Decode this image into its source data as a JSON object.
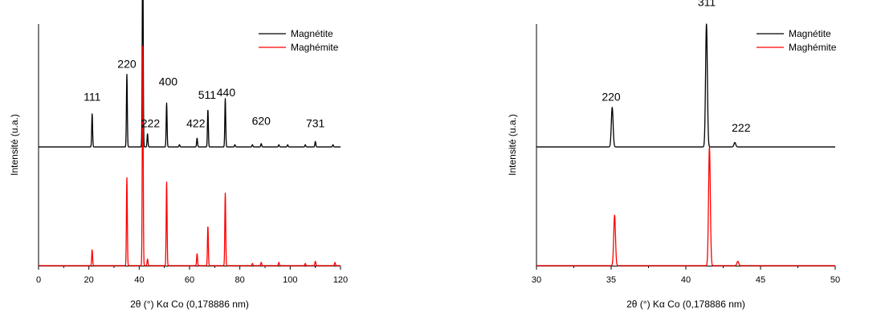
{
  "chart_data": [
    {
      "type": "line",
      "title": "",
      "xlabel": "2θ (°) Kα Co (0,178886 nm)",
      "ylabel": "Intensité (u.a.)",
      "xlim": [
        0,
        120
      ],
      "x_ticks": [
        0,
        20,
        40,
        60,
        80,
        100,
        120
      ],
      "y_ticks": [],
      "legend_position": "top-right",
      "series": [
        {
          "name": "Magnétite",
          "color": "#000000",
          "offset": 0.54,
          "peaks": [
            [
              21.3,
              0.15
            ],
            [
              35.1,
              0.33
            ],
            [
              41.4,
              1.0
            ],
            [
              43.3,
              0.06
            ],
            [
              50.9,
              0.2
            ],
            [
              56.0,
              0.01
            ],
            [
              63.0,
              0.04
            ],
            [
              67.3,
              0.17
            ],
            [
              74.2,
              0.22
            ],
            [
              78.0,
              0.01
            ],
            [
              85.0,
              0.01
            ],
            [
              88.5,
              0.015
            ],
            [
              95.5,
              0.01
            ],
            [
              99.0,
              0.01
            ],
            [
              106.0,
              0.01
            ],
            [
              110.0,
              0.025
            ],
            [
              117.0,
              0.01
            ]
          ]
        },
        {
          "name": "Maghémite",
          "color": "#ff0000",
          "offset": 0.0,
          "peaks": [
            [
              21.3,
              0.072
            ],
            [
              35.1,
              0.4
            ],
            [
              41.4,
              1.0
            ],
            [
              43.3,
              0.03
            ],
            [
              50.9,
              0.38
            ],
            [
              63.0,
              0.055
            ],
            [
              67.3,
              0.18
            ],
            [
              74.2,
              0.33
            ],
            [
              85.0,
              0.01
            ],
            [
              88.5,
              0.015
            ],
            [
              95.5,
              0.015
            ],
            [
              106.0,
              0.01
            ],
            [
              110.0,
              0.02
            ],
            [
              117.8,
              0.015
            ]
          ]
        }
      ],
      "annotations": [
        {
          "text": "111",
          "x": 21.3,
          "y": 0.75
        },
        {
          "text": "220",
          "x": 35.1,
          "y": 0.9
        },
        {
          "text": "311",
          "x": 41.4,
          "y": 1.6
        },
        {
          "text": "222",
          "x": 44.5,
          "y": 0.63
        },
        {
          "text": "400",
          "x": 51.5,
          "y": 0.82
        },
        {
          "text": "422",
          "x": 62.5,
          "y": 0.63
        },
        {
          "text": "511",
          "x": 67.0,
          "y": 0.76
        },
        {
          "text": "440",
          "x": 74.5,
          "y": 0.77
        },
        {
          "text": "620",
          "x": 88.5,
          "y": 0.64
        },
        {
          "text": "731",
          "x": 110.0,
          "y": 0.63
        }
      ]
    },
    {
      "type": "line",
      "title": "",
      "xlabel": "2θ (°) Kα Co (0,178886 nm)",
      "ylabel": "Intensité (u.a.)",
      "xlim": [
        30,
        50
      ],
      "x_ticks": [
        30,
        35,
        40,
        45,
        50
      ],
      "y_ticks": [],
      "legend_position": "top-right",
      "series": [
        {
          "name": "Magnétite",
          "color": "#000000",
          "offset": 0.54,
          "peaks": [
            [
              35.07,
              0.18
            ],
            [
              41.38,
              0.56
            ],
            [
              43.28,
              0.02
            ]
          ]
        },
        {
          "name": "Maghémite",
          "color": "#ff0000",
          "offset": 0.0,
          "peaks": [
            [
              35.23,
              0.23
            ],
            [
              41.58,
              0.54
            ],
            [
              43.48,
              0.02
            ]
          ]
        }
      ],
      "annotations": [
        {
          "text": "220",
          "x": 35.0,
          "y": 0.75
        },
        {
          "text": "311",
          "x": 41.4,
          "y": 1.18
        },
        {
          "text": "222",
          "x": 43.7,
          "y": 0.61
        }
      ]
    }
  ]
}
